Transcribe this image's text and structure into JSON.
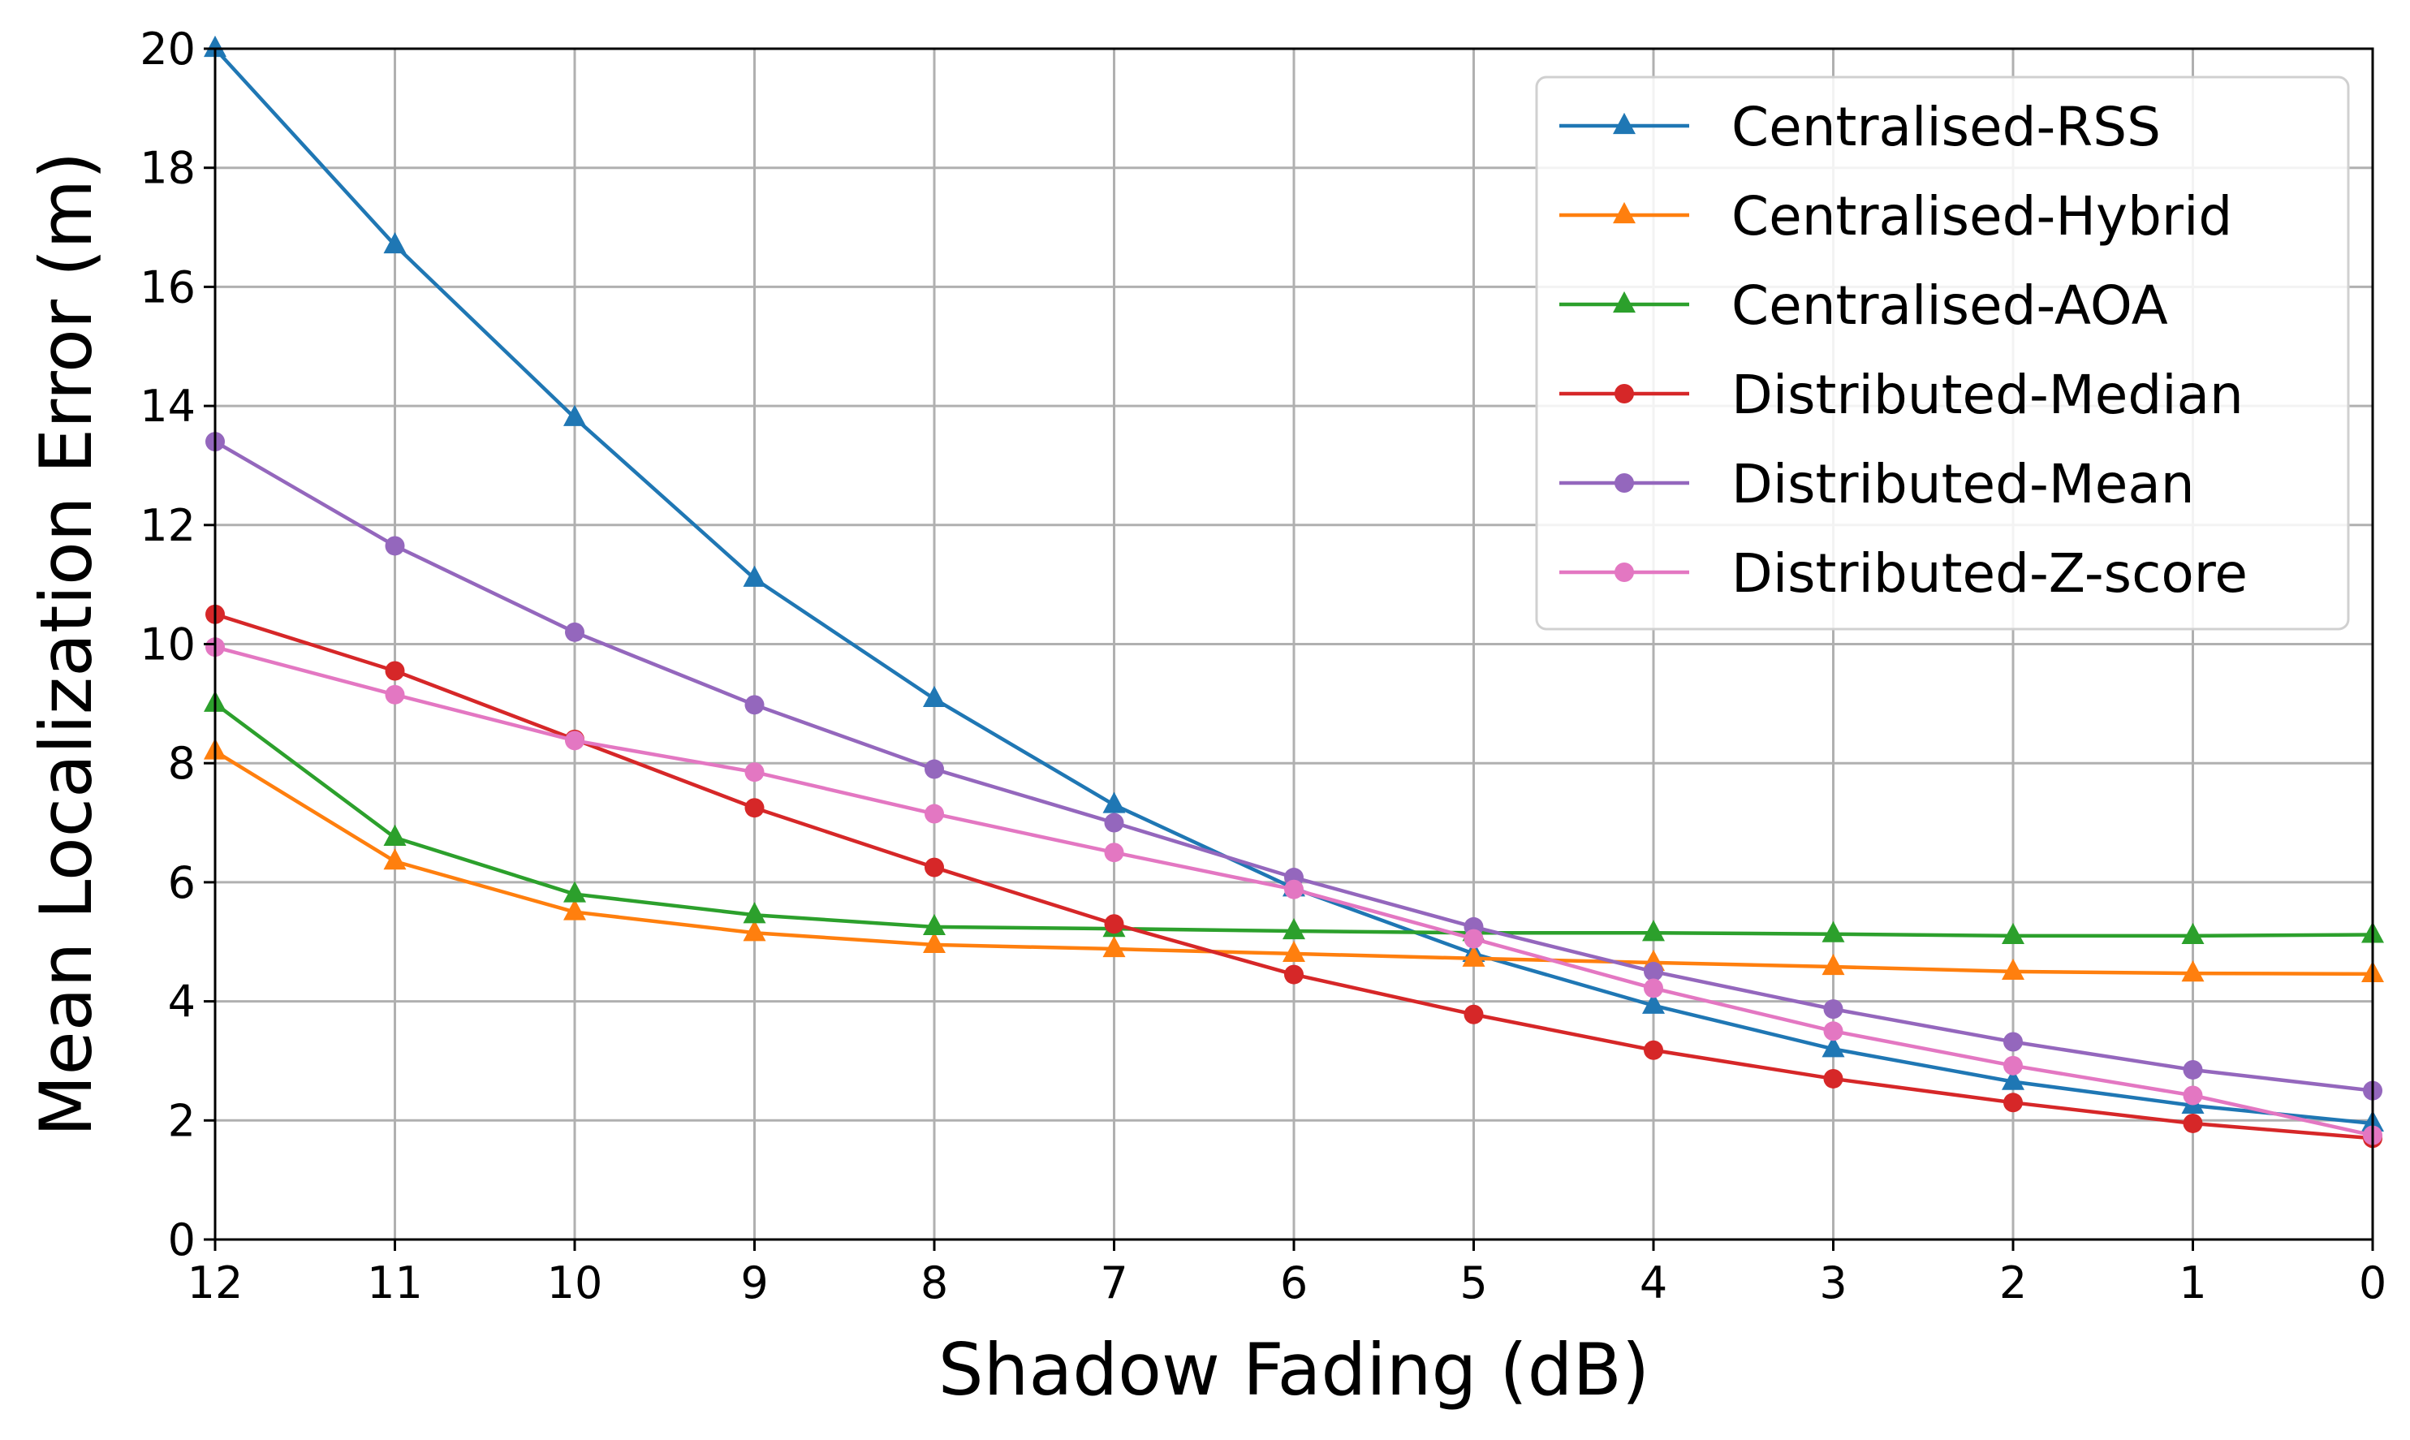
{
  "chart_data": {
    "type": "line",
    "xlabel": "Shadow Fading (dB)",
    "ylabel": "Mean Localization Error (m)",
    "xlim": [
      12,
      0
    ],
    "x_reversed": true,
    "ylim": [
      0,
      20
    ],
    "x": [
      12,
      11,
      10,
      9,
      8,
      7,
      6,
      5,
      4,
      3,
      2,
      1,
      0
    ],
    "x_ticks": [
      "12",
      "11",
      "10",
      "9",
      "8",
      "7",
      "6",
      "5",
      "4",
      "3",
      "2",
      "1",
      "0"
    ],
    "y_ticks": [
      "0",
      "2",
      "4",
      "6",
      "8",
      "10",
      "12",
      "14",
      "16",
      "18",
      "20"
    ],
    "grid": true,
    "legend_position": "top-right",
    "series": [
      {
        "name": "Centralised-RSS",
        "color": "#1f77b4",
        "marker": "triangle",
        "values": [
          20.0,
          16.7,
          13.8,
          11.1,
          9.08,
          7.3,
          5.9,
          4.8,
          3.93,
          3.2,
          2.65,
          2.25,
          1.95
        ]
      },
      {
        "name": "Centralised-Hybrid",
        "color": "#ff7f0e",
        "marker": "triangle",
        "values": [
          8.2,
          6.35,
          5.5,
          5.15,
          4.95,
          4.88,
          4.8,
          4.72,
          4.65,
          4.58,
          4.5,
          4.47,
          4.46
        ]
      },
      {
        "name": "Centralised-AOA",
        "color": "#2ca02c",
        "marker": "triangle",
        "values": [
          9.0,
          6.75,
          5.8,
          5.45,
          5.25,
          5.22,
          5.18,
          5.15,
          5.15,
          5.13,
          5.1,
          5.1,
          5.12
        ]
      },
      {
        "name": "Distributed-Median",
        "color": "#d62728",
        "marker": "circle",
        "values": [
          10.5,
          9.55,
          8.4,
          7.25,
          6.25,
          5.3,
          4.45,
          3.78,
          3.18,
          2.7,
          2.3,
          1.95,
          1.7
        ]
      },
      {
        "name": "Distributed-Mean",
        "color": "#9467bd",
        "marker": "circle",
        "values": [
          13.4,
          11.65,
          10.2,
          8.98,
          7.9,
          7.0,
          6.08,
          5.25,
          4.5,
          3.87,
          3.32,
          2.85,
          2.5
        ]
      },
      {
        "name": "Distributed-Z-score",
        "color": "#e377c2",
        "marker": "circle",
        "values": [
          9.95,
          9.15,
          8.38,
          7.85,
          7.15,
          6.5,
          5.88,
          5.05,
          4.22,
          3.5,
          2.92,
          2.42,
          1.75
        ]
      }
    ]
  }
}
